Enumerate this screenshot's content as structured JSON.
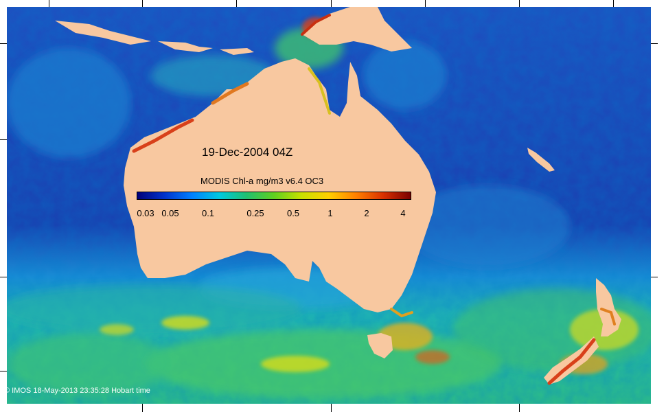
{
  "map": {
    "date_label": "19-Dec-2004 04Z",
    "colorbar": {
      "title": "MODIS Chl-a mg/m3 v6.4 OC3",
      "ticks": [
        "0.03",
        "0.05",
        "0.1",
        "0.25",
        "0.5",
        "1",
        "2",
        "4"
      ],
      "gradient": [
        "#00007a",
        "#0033cc",
        "#0080ff",
        "#00c8e0",
        "#20c070",
        "#60d020",
        "#c8e000",
        "#ffd000",
        "#ff8000",
        "#d83000",
        "#7a0000"
      ]
    },
    "credit": "© IMOS 18-May-2013 23:35:28 Hobart time",
    "colors": {
      "land": "#f8c8a0",
      "ocean_deep": "#1a3fb0",
      "ocean_mid": "#1b8ed6",
      "ocean_green": "#3fc47a",
      "bloom_yellow": "#d6dc1a",
      "bloom_red": "#d8401a"
    },
    "icons": [
      "copyright-icon"
    ]
  }
}
